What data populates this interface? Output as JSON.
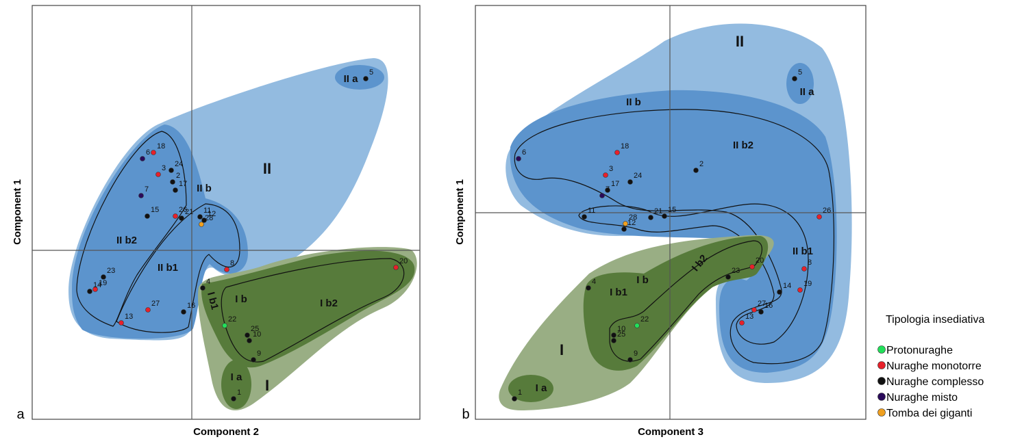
{
  "chart_data": [
    {
      "type": "scatter",
      "panel": "a",
      "x_label": "Component 2",
      "y_label": "Component 1",
      "xlim": [
        -2.33,
        3.33
      ],
      "ylim": [
        -2.47,
        3.58
      ],
      "zero_lines": {
        "x": 0,
        "y": 0
      },
      "regions": [
        "II",
        "II a",
        "II b",
        "II b2",
        "II b1",
        "I b1",
        "I b",
        "I b2",
        "I a",
        "I"
      ],
      "series": [
        {
          "color": "#22e05a",
          "labels": [
            "22"
          ],
          "x": [
            0.48
          ],
          "y": [
            -1.1
          ]
        },
        {
          "color": "#e8202a",
          "labels": [
            "18",
            "3",
            "26",
            "8",
            "19",
            "27",
            "13",
            "20"
          ],
          "x": [
            -0.56,
            -0.49,
            -0.24,
            0.51,
            -1.41,
            -0.64,
            -1.03,
            2.98
          ],
          "y": [
            1.43,
            1.11,
            0.5,
            -0.28,
            -0.57,
            -0.87,
            -1.06,
            -0.25
          ]
        },
        {
          "color": "#111111",
          "labels": [
            "24",
            "2",
            "17",
            "15",
            "21",
            "11",
            "12",
            "23",
            "14",
            "16",
            "4",
            "25",
            "10",
            "9",
            "1",
            "5"
          ],
          "x": [
            -0.3,
            -0.28,
            -0.24,
            -0.65,
            -0.15,
            0.12,
            0.18,
            -1.29,
            -1.49,
            -0.12,
            0.16,
            0.81,
            0.84,
            0.9,
            0.61,
            2.54
          ],
          "y": [
            1.17,
            1.0,
            0.88,
            0.5,
            0.47,
            0.49,
            0.44,
            -0.39,
            -0.6,
            -0.9,
            -0.55,
            -1.24,
            -1.32,
            -1.6,
            -2.17,
            2.51
          ]
        },
        {
          "color": "#2a0a5a",
          "labels": [
            "6",
            "7"
          ],
          "x": [
            -0.72,
            -0.74
          ],
          "y": [
            1.34,
            0.8
          ]
        },
        {
          "color": "#f0a020",
          "labels": [
            "28"
          ],
          "x": [
            0.14
          ],
          "y": [
            0.38
          ]
        }
      ]
    },
    {
      "type": "scatter",
      "panel": "b",
      "x_label": "Component 3",
      "y_label": "Component 1",
      "xlim": [
        -2.84,
        2.86
      ],
      "ylim": [
        -3.02,
        3.03
      ],
      "zero_lines": {
        "x": 0,
        "y": 0
      },
      "regions": [
        "II",
        "II a",
        "II b",
        "II b2",
        "II b1",
        "I b2",
        "I b",
        "I b1",
        "I a",
        "I"
      ],
      "legend_title": "Tipologia insediativa",
      "series": [
        {
          "name": "Protonuraghe",
          "color": "#22e05a",
          "labels": [
            "22"
          ],
          "x": [
            -0.48
          ],
          "y": [
            -1.65
          ]
        },
        {
          "name": "Nuraghe monotorre",
          "color": "#e8202a",
          "labels": [
            "18",
            "3",
            "26",
            "20",
            "8",
            "19",
            "27",
            "13"
          ],
          "x": [
            -0.77,
            -0.94,
            2.18,
            1.2,
            1.96,
            1.9,
            1.23,
            1.05
          ],
          "y": [
            0.88,
            0.55,
            -0.06,
            -0.79,
            -0.82,
            -1.13,
            -1.42,
            -1.61
          ]
        },
        {
          "name": "Nuraghe complesso",
          "color": "#111111",
          "labels": [
            "5",
            "24",
            "17",
            "2",
            "11",
            "15",
            "21",
            "12",
            "23",
            "14",
            "16",
            "4",
            "10",
            "25",
            "9",
            "1"
          ],
          "x": [
            1.82,
            -0.58,
            -0.91,
            0.38,
            -1.25,
            -0.08,
            -0.28,
            -0.67,
            0.85,
            1.6,
            1.33,
            -1.19,
            -0.82,
            -0.82,
            -0.58,
            -2.27
          ],
          "y": [
            1.96,
            0.45,
            0.33,
            0.62,
            -0.06,
            -0.05,
            -0.07,
            -0.24,
            -0.94,
            -1.16,
            -1.45,
            -1.1,
            -1.79,
            -1.87,
            -2.15,
            -2.72
          ]
        },
        {
          "name": "Nuraghe misto",
          "color": "#2a0a5a",
          "labels": [
            "6",
            "7"
          ],
          "x": [
            -2.21,
            -0.99
          ],
          "y": [
            0.79,
            0.25
          ]
        },
        {
          "name": "Tomba dei giganti",
          "color": "#f0a020",
          "labels": [
            "28"
          ],
          "x": [
            -0.65
          ],
          "y": [
            -0.16
          ]
        }
      ]
    }
  ]
}
